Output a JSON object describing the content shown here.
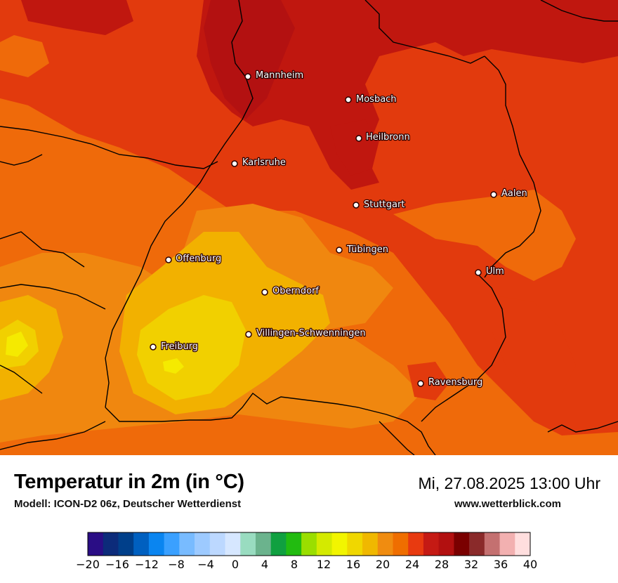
{
  "title": "Temperatur in 2m (in °C)",
  "subtitle": "Modell: ICON-D2 06z, Deutscher Wetterdienst",
  "datetime": "Mi, 27.08.2025 13:00 Uhr",
  "website": "www.wetterblick.com",
  "cities": [
    {
      "name": "Mannheim"
    },
    {
      "name": "Mosbach"
    },
    {
      "name": "Heilbronn"
    },
    {
      "name": "Karlsruhe"
    },
    {
      "name": "Aalen"
    },
    {
      "name": "Stuttgart"
    },
    {
      "name": "Tübingen"
    },
    {
      "name": "Offenburg"
    },
    {
      "name": "Ulm"
    },
    {
      "name": "Oberndorf"
    },
    {
      "name": "Villingen-Schwenningen"
    },
    {
      "name": "Freiburg"
    },
    {
      "name": "Ravensburg"
    }
  ],
  "legend": {
    "min": -20,
    "max": 40,
    "step": 2,
    "tick_labels": [
      "−20",
      "−16",
      "−12",
      "−8",
      "−4",
      "0",
      "4",
      "8",
      "12",
      "16",
      "20",
      "24",
      "28",
      "32",
      "36",
      "40"
    ],
    "colors": [
      "#2a0d85",
      "#0c2b7a",
      "#003f8a",
      "#0060c0",
      "#0a85f0",
      "#3aa0ff",
      "#78bbff",
      "#9dcaff",
      "#bcd8ff",
      "#d6e7ff",
      "#99dcc0",
      "#6bb38d",
      "#10a040",
      "#22bb10",
      "#9ade00",
      "#d4ea00",
      "#f2f500",
      "#f0d700",
      "#f0b800",
      "#f08c10",
      "#ef6e00",
      "#e83a10",
      "#c51a14",
      "#b21010",
      "#7a0000",
      "#8a2a2a",
      "#c47070",
      "#f2b0b0",
      "#ffdede"
    ]
  },
  "map_colors": {
    "t32": "#b31111",
    "t30": "#c0170f",
    "t28": "#e23a0d",
    "t26": "#ef6a0a",
    "t24": "#f0870f",
    "t22": "#f2b100",
    "t20": "#f1d000",
    "t18": "#f5ea00",
    "border": "#000000"
  }
}
